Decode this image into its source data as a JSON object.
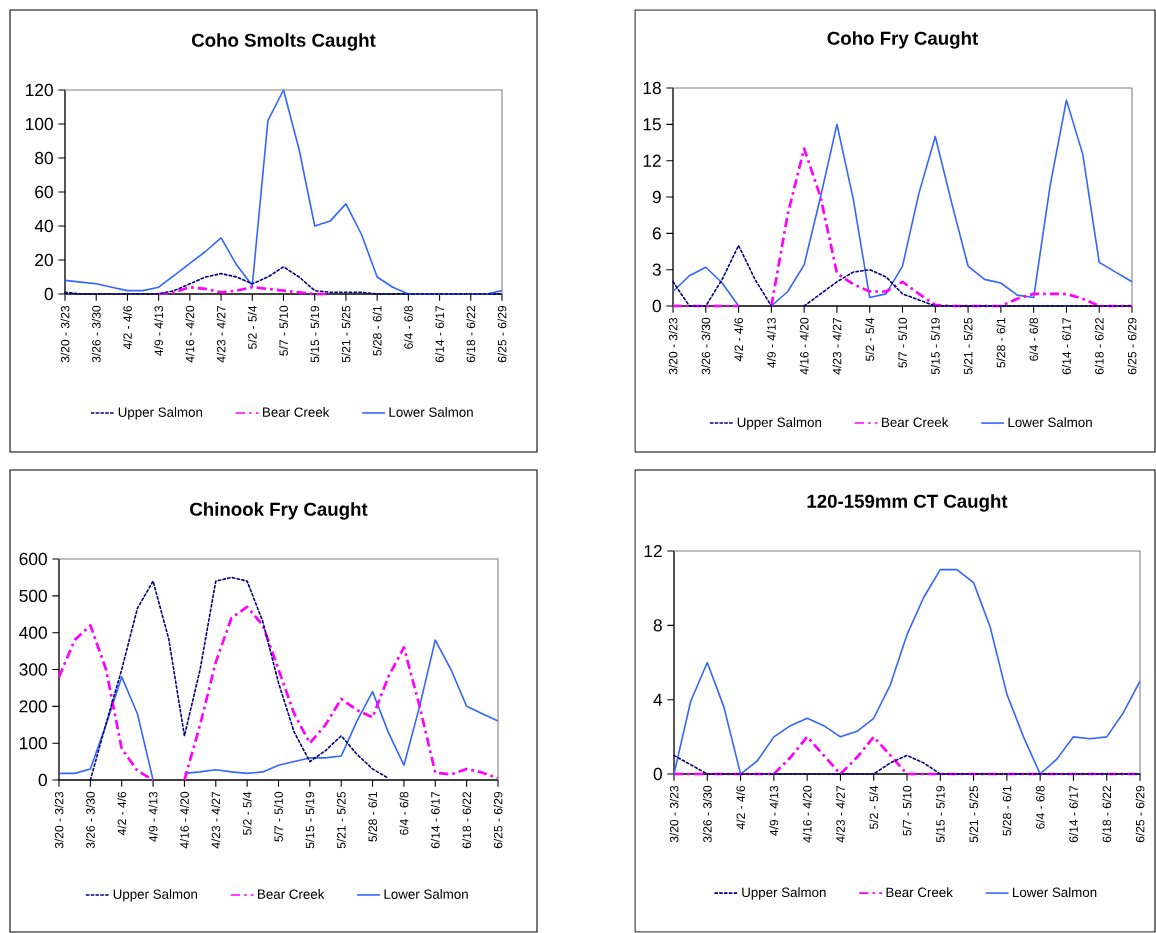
{
  "chart_data": [
    {
      "type": "line",
      "title": "Coho Smolts Caught",
      "legend": "bottom",
      "grid": false,
      "categories": [
        "3/20 - 3/23",
        null,
        "3/26 - 3/30",
        null,
        "4/2 - 4/6",
        null,
        "4/9 - 4/13",
        null,
        "4/16 - 4/20",
        null,
        "4/23 - 4/27",
        null,
        "5/2 - 5/4",
        null,
        "5/7 - 5/10",
        null,
        "5/15 - 5/19",
        null,
        "5/21 - 5/25",
        null,
        "5/28 - 6/1",
        null,
        "6/4 - 6/8",
        null,
        "6/14 - 6/17",
        null,
        "6/18 - 6/22",
        null,
        "6/25 - 6/29"
      ],
      "ylim": [
        0,
        120
      ],
      "yticks": [
        0,
        20,
        40,
        60,
        80,
        100,
        120
      ],
      "series": [
        {
          "name": "Upper Salmon",
          "color": "#000080",
          "line_style": "dotted",
          "values": [
            1,
            0,
            0,
            0,
            0,
            0,
            0,
            2,
            6,
            10,
            12,
            10,
            6,
            10,
            16,
            10,
            2,
            1,
            1,
            1,
            0,
            0,
            0,
            0,
            0,
            0,
            0,
            0,
            0
          ]
        },
        {
          "name": "Bear Creek",
          "color": "#ff00ff",
          "line_style": "dashed",
          "values": [
            null,
            null,
            null,
            null,
            null,
            null,
            0,
            1,
            4,
            3,
            1,
            2,
            4,
            3,
            2,
            1,
            0,
            0,
            null,
            null,
            null,
            null,
            null,
            null,
            null,
            null,
            null,
            null,
            null
          ]
        },
        {
          "name": "Lower Salmon",
          "color": "#3366ff",
          "line_style": "solid",
          "values": [
            8,
            7,
            6,
            4,
            2,
            2,
            4,
            11,
            18,
            25,
            33,
            17,
            5,
            102,
            120,
            85,
            40,
            43,
            53,
            35,
            10,
            4,
            0,
            0,
            0,
            0,
            0,
            0,
            2
          ]
        }
      ]
    },
    {
      "type": "line",
      "title": "Coho Fry Caught",
      "legend": "bottom",
      "grid": false,
      "categories": [
        "3/20 - 3/23",
        null,
        "3/26 - 3/30",
        null,
        "4/2 - 4/6",
        null,
        "4/9 - 4/13",
        null,
        "4/16 - 4/20",
        null,
        "4/23 - 4/27",
        null,
        "5/2 - 5/4",
        null,
        "5/7 - 5/10",
        null,
        "5/15 - 5/19",
        null,
        "5/21 - 5/25",
        null,
        "5/28 - 6/1",
        null,
        "6/4 - 6/8",
        null,
        "6/14 - 6/17",
        null,
        "6/18 - 6/22",
        null,
        "6/25 - 6/29"
      ],
      "ylim": [
        0,
        18
      ],
      "yticks": [
        0,
        3,
        6,
        9,
        12,
        15,
        18
      ],
      "series": [
        {
          "name": "Upper Salmon",
          "color": "#000080",
          "line_style": "dotted",
          "values": [
            2,
            0,
            0,
            2.2,
            5,
            2.2,
            0,
            null,
            0,
            1,
            2,
            2.8,
            3,
            2.4,
            1,
            0.5,
            0,
            0,
            0,
            0,
            0,
            0,
            0,
            0,
            0,
            0,
            0,
            0,
            0
          ]
        },
        {
          "name": "Bear Creek",
          "color": "#ff00ff",
          "line_style": "dashed",
          "values": [
            0,
            0,
            0,
            0,
            0,
            null,
            0,
            7.6,
            13,
            9,
            2.7,
            1.8,
            1.2,
            1.2,
            2,
            1,
            0.1,
            0,
            0,
            0,
            0,
            0.6,
            1,
            1,
            1,
            0.6,
            0,
            0,
            0
          ]
        },
        {
          "name": "Lower Salmon",
          "color": "#3366ff",
          "line_style": "solid",
          "values": [
            1.2,
            2.5,
            3.2,
            1.9,
            0,
            null,
            0,
            1.2,
            3.4,
            9,
            15,
            8.8,
            0.7,
            1,
            3.3,
            9.3,
            14,
            8.5,
            3.3,
            2.2,
            1.9,
            0.9,
            0.7,
            9.9,
            17,
            12.5,
            3.6,
            2.8,
            2
          ]
        }
      ]
    },
    {
      "type": "line",
      "title": "Chinook Fry Caught",
      "legend": "bottom",
      "grid": false,
      "categories": [
        "3/20 - 3/23",
        null,
        "3/26 - 3/30",
        null,
        "4/2 - 4/6",
        null,
        "4/9 - 4/13",
        null,
        "4/16 - 4/20",
        null,
        "4/23 - 4/27",
        null,
        "5/2 - 5/4",
        null,
        "5/7 - 5/10",
        null,
        "5/15 - 5/19",
        null,
        "5/21 - 5/25",
        null,
        "5/28 - 6/1",
        null,
        "6/4 - 6/8",
        null,
        "6/14 - 6/17",
        null,
        "6/18 - 6/22",
        null,
        "6/25 - 6/29"
      ],
      "ylim": [
        0,
        600
      ],
      "yticks": [
        0,
        100,
        200,
        300,
        400,
        500,
        600
      ],
      "series": [
        {
          "name": "Upper Salmon",
          "color": "#000080",
          "line_style": "dotted",
          "values": [
            null,
            null,
            0,
            153,
            300,
            466,
            540,
            383,
            120,
            300,
            540,
            550,
            540,
            430,
            264,
            130,
            50,
            80,
            120,
            70,
            30,
            5,
            null,
            null,
            null,
            null,
            null,
            null,
            null
          ]
        },
        {
          "name": "Bear Creek",
          "color": "#ff00ff",
          "line_style": "dashed",
          "values": [
            280,
            380,
            420,
            300,
            85,
            25,
            0,
            null,
            0,
            150,
            320,
            440,
            470,
            420,
            300,
            180,
            100,
            150,
            220,
            190,
            170,
            280,
            360,
            200,
            20,
            15,
            30,
            20,
            5
          ]
        },
        {
          "name": "Lower Salmon",
          "color": "#3366ff",
          "line_style": "solid",
          "values": [
            18,
            18,
            30,
            150,
            280,
            180,
            0,
            null,
            18,
            22,
            28,
            22,
            18,
            22,
            40,
            50,
            60,
            60,
            65,
            160,
            240,
            130,
            40,
            200,
            380,
            300,
            200,
            180,
            160
          ]
        }
      ]
    },
    {
      "type": "line",
      "title": "120-159mm CT Caught",
      "legend": "bottom",
      "grid": false,
      "categories": [
        "3/20 - 3/23",
        null,
        "3/26 - 3/30",
        null,
        "4/2 - 4/6",
        null,
        "4/9 - 4/13",
        null,
        "4/16 - 4/20",
        null,
        "4/23 - 4/27",
        null,
        "5/2 - 5/4",
        null,
        "5/7 - 5/10",
        null,
        "5/15 - 5/19",
        null,
        "5/21 - 5/25",
        null,
        "5/28 - 6/1",
        null,
        "6/4 - 6/8",
        null,
        "6/14 - 6/17",
        null,
        "6/18 - 6/22",
        null,
        "6/25 - 6/29"
      ],
      "ylim": [
        0,
        12
      ],
      "yticks": [
        0,
        4,
        8,
        12
      ],
      "series": [
        {
          "name": "Upper Salmon",
          "color": "#000080",
          "line_style": "dotted",
          "values": [
            1,
            0.5,
            0,
            0,
            0,
            0,
            0,
            0,
            0,
            0,
            0,
            0,
            0,
            0.6,
            1,
            0.6,
            0,
            0,
            0,
            0,
            0,
            0,
            0,
            0,
            0,
            0,
            0,
            0,
            0
          ]
        },
        {
          "name": "Bear Creek",
          "color": "#ff00ff",
          "line_style": "dashed",
          "values": [
            0,
            0,
            0,
            0,
            0,
            0,
            0,
            0.9,
            2,
            1,
            0,
            0.9,
            2,
            1,
            0,
            0,
            0,
            0,
            0,
            0,
            0,
            0,
            0,
            0,
            0,
            0,
            0,
            0,
            0
          ]
        },
        {
          "name": "Lower Salmon",
          "color": "#3366ff",
          "line_style": "solid",
          "values": [
            0,
            3.9,
            6,
            3.6,
            0,
            0.7,
            2,
            2.6,
            3,
            2.6,
            2,
            2.3,
            3,
            4.8,
            7.5,
            9.5,
            11,
            11,
            10.3,
            7.9,
            4.3,
            2,
            0,
            0.8,
            2,
            1.9,
            2,
            3.3,
            5
          ]
        }
      ]
    }
  ]
}
